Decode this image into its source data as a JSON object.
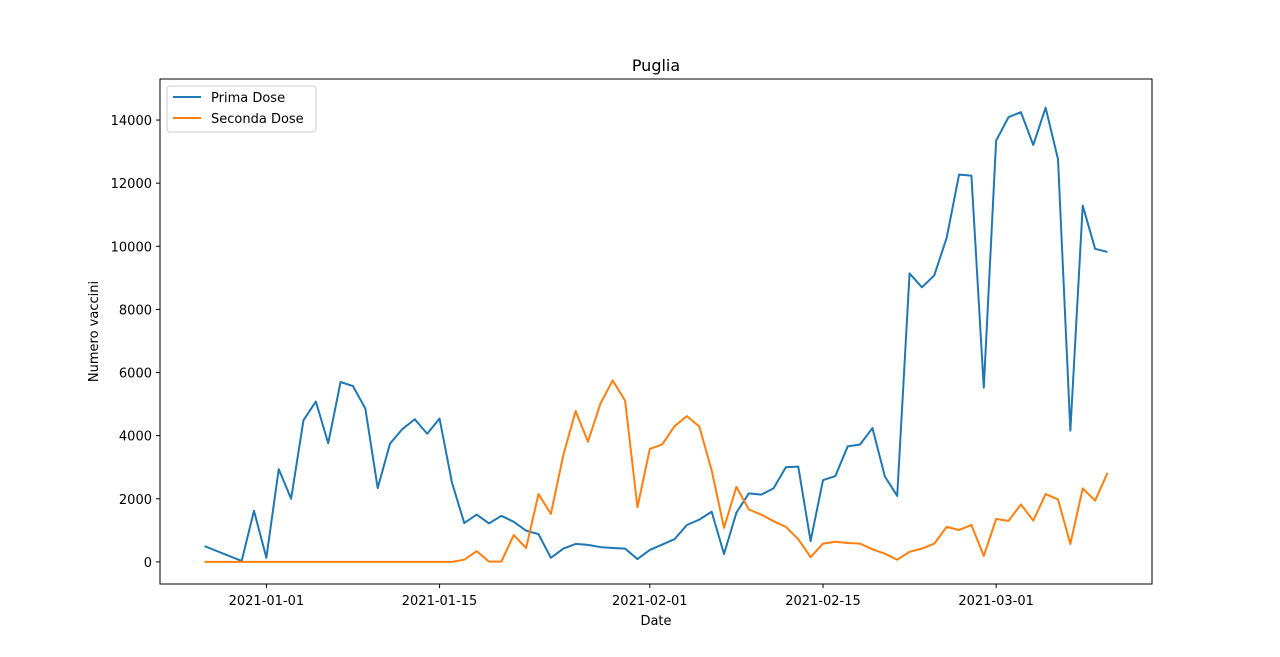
{
  "chart_data": {
    "type": "line",
    "title": "Puglia",
    "xlabel": "Date",
    "ylabel": "Numero vaccini",
    "x": [
      "2020-12-27",
      "2020-12-28",
      "2020-12-29",
      "2020-12-30",
      "2020-12-31",
      "2021-01-01",
      "2021-01-02",
      "2021-01-03",
      "2021-01-04",
      "2021-01-05",
      "2021-01-06",
      "2021-01-07",
      "2021-01-08",
      "2021-01-09",
      "2021-01-10",
      "2021-01-11",
      "2021-01-12",
      "2021-01-13",
      "2021-01-14",
      "2021-01-15",
      "2021-01-16",
      "2021-01-17",
      "2021-01-18",
      "2021-01-19",
      "2021-01-20",
      "2021-01-21",
      "2021-01-22",
      "2021-01-23",
      "2021-01-24",
      "2021-01-25",
      "2021-01-26",
      "2021-01-27",
      "2021-01-28",
      "2021-01-29",
      "2021-01-30",
      "2021-01-31",
      "2021-02-01",
      "2021-02-02",
      "2021-02-03",
      "2021-02-04",
      "2021-02-05",
      "2021-02-06",
      "2021-02-07",
      "2021-02-08",
      "2021-02-09",
      "2021-02-10",
      "2021-02-11",
      "2021-02-12",
      "2021-02-13",
      "2021-02-14",
      "2021-02-15",
      "2021-02-16",
      "2021-02-17",
      "2021-02-18",
      "2021-02-19",
      "2021-02-20",
      "2021-02-21",
      "2021-02-22",
      "2021-02-23",
      "2021-02-24",
      "2021-02-25",
      "2021-02-26",
      "2021-02-27",
      "2021-02-28",
      "2021-03-01",
      "2021-03-02",
      "2021-03-03",
      "2021-03-04",
      "2021-03-05",
      "2021-03-06",
      "2021-03-07",
      "2021-03-08",
      "2021-03-09",
      "2021-03-10"
    ],
    "xticks": [
      "2021-01-01",
      "2021-01-15",
      "2021-02-01",
      "2021-02-15",
      "2021-03-01"
    ],
    "ylim": [
      -700,
      15300
    ],
    "yticks": [
      0,
      2000,
      4000,
      6000,
      8000,
      10000,
      12000,
      14000
    ],
    "xlim": [
      "2020-12-23.4",
      "2021-03-13.6"
    ],
    "legend_position": "upper-left",
    "grid": false,
    "series": [
      {
        "name": "Prima Dose",
        "color": "#1f77b4",
        "values": [
          500,
          null,
          null,
          30,
          1620,
          130,
          2940,
          2000,
          4490,
          5080,
          3760,
          5700,
          5570,
          4860,
          2340,
          3750,
          4210,
          4520,
          4060,
          4540,
          2520,
          1230,
          1500,
          1220,
          1460,
          1270,
          990,
          880,
          130,
          420,
          570,
          540,
          470,
          440,
          420,
          90,
          380,
          550,
          720,
          1170,
          1340,
          1590,
          250,
          1560,
          2170,
          2130,
          2330,
          3000,
          3020,
          660,
          2590,
          2720,
          3660,
          3720,
          4240,
          2710,
          2090,
          9140,
          8700,
          9080,
          10270,
          12270,
          12240,
          5520,
          13350,
          14090,
          14250,
          13210,
          14390,
          12760,
          4160,
          11290,
          9920,
          9820
        ]
      },
      {
        "name": "Seconda Dose",
        "color": "#ff7f0e",
        "values": [
          0,
          null,
          null,
          0,
          0,
          0,
          0,
          0,
          0,
          0,
          0,
          0,
          0,
          0,
          0,
          0,
          0,
          0,
          0,
          0,
          0,
          70,
          340,
          10,
          10,
          850,
          440,
          2150,
          1520,
          3370,
          4780,
          3810,
          5010,
          5750,
          5110,
          1730,
          3580,
          3720,
          4300,
          4620,
          4290,
          2900,
          1080,
          2380,
          1660,
          1500,
          1290,
          1110,
          720,
          150,
          580,
          640,
          600,
          580,
          400,
          260,
          70,
          320,
          420,
          580,
          1110,
          1010,
          1170,
          190,
          1360,
          1300,
          1820,
          1310,
          2150,
          1980,
          570,
          2330,
          1940,
          2820
        ]
      }
    ]
  }
}
